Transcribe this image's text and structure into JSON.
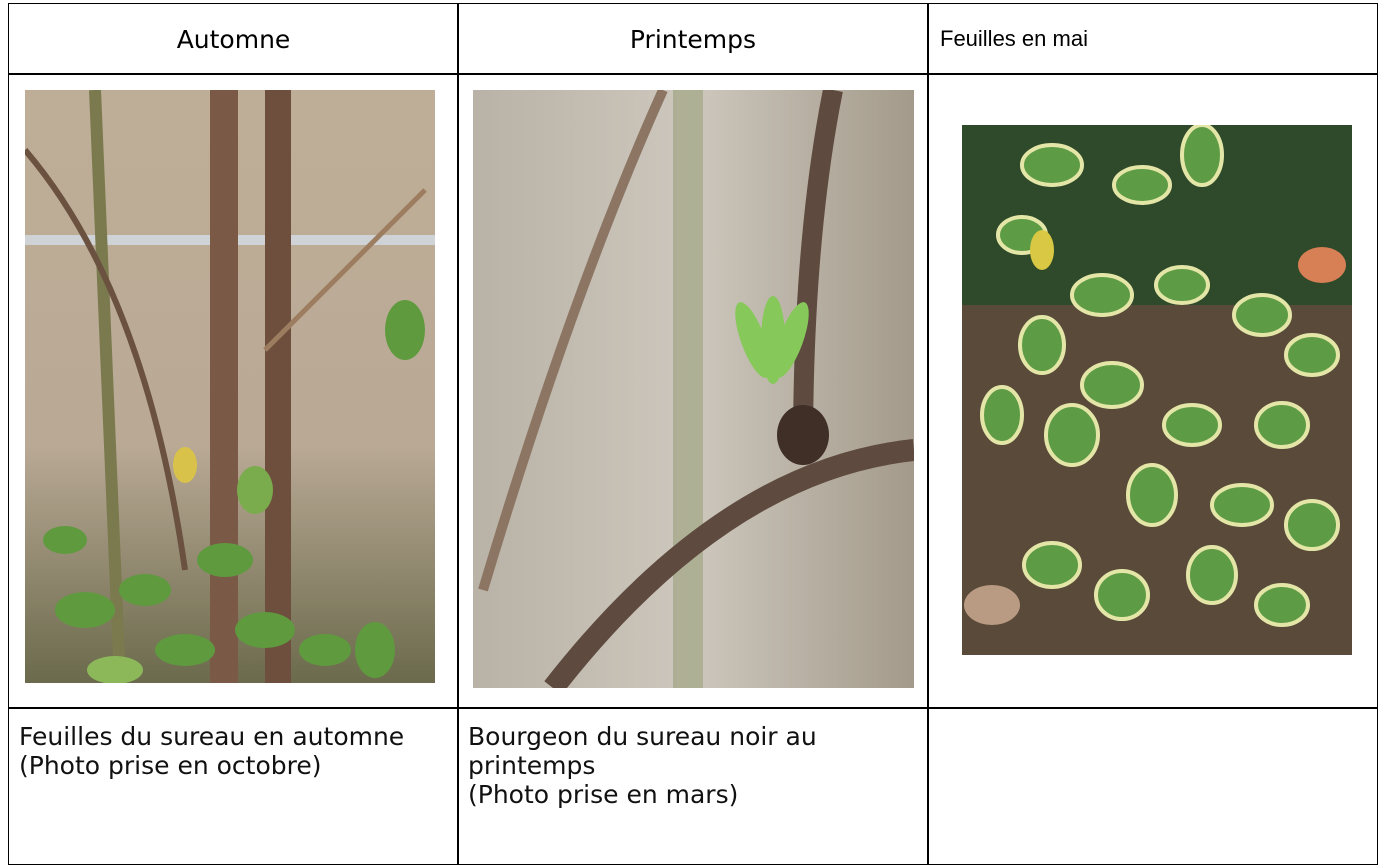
{
  "table": {
    "header": [
      "Automne",
      "Printemps",
      "Feuilles en mai"
    ],
    "captions": [
      [
        "Feuilles du sureau en automne",
        "(Photo prise en octobre)"
      ],
      [
        "Bourgeon du sureau noir au printemps",
        "(Photo prise en mars)"
      ]
    ]
  }
}
